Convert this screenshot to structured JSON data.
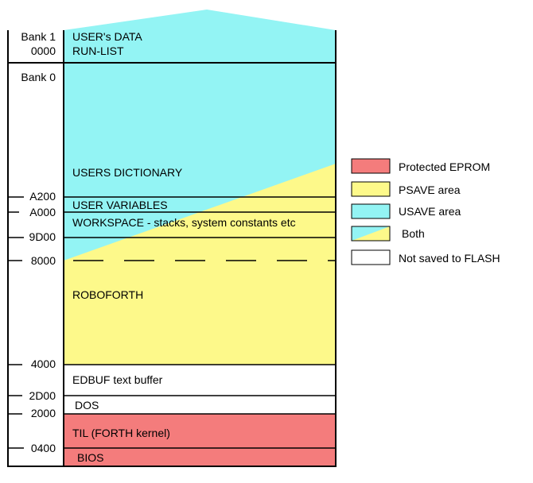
{
  "colors": {
    "protected": "#f47c7c",
    "psave": "#fdf98a",
    "usave": "#93f4f4",
    "none": "#ffffff",
    "line": "#000000"
  },
  "addresses": {
    "bank1": "Bank 1",
    "a0000_top": "0000",
    "bank0": "Bank 0",
    "a200": "A200",
    "a000": "A000",
    "a9d00": "9D00",
    "a8000": "8000",
    "a4000": "4000",
    "a2d00": "2D00",
    "a2000": "2000",
    "a0400": "0400"
  },
  "regions": {
    "users_data": "USER's DATA",
    "run_list": "RUN-LIST",
    "users_dictionary": "USERS DICTIONARY",
    "user_variables": "USER VARIABLES",
    "workspace": "WORKSPACE - stacks, system constants etc",
    "roboforth": "ROBOFORTH",
    "edbuf": "EDBUF text buffer",
    "dos": "DOS",
    "til": "TIL (FORTH kernel)",
    "bios": "BIOS"
  },
  "legend": [
    {
      "label": "Protected EPROM",
      "kind": "protected"
    },
    {
      "label": "PSAVE area",
      "kind": "psave"
    },
    {
      "label": "USAVE area",
      "kind": "usave"
    },
    {
      "label": "Both",
      "kind": "both"
    },
    {
      "label": "Not saved to FLASH",
      "kind": "none"
    }
  ]
}
